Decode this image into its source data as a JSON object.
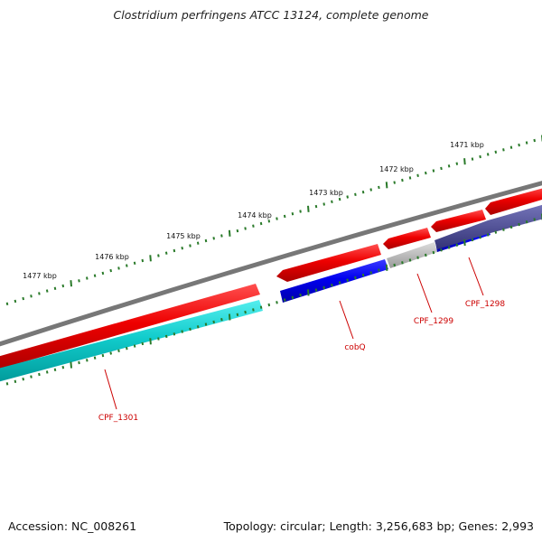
{
  "title": "Clostridium perfringens ATCC 13124, complete genome",
  "footer": {
    "accession": "Accession: NC_008261",
    "summary": "Topology: circular; Length: 3,256,683 bp; Genes: 2,993"
  },
  "scale_labels": [
    "1471 kbp",
    "1472 kbp",
    "1473 kbp",
    "1474 kbp",
    "1475 kbp",
    "1476 kbp",
    "1477 kbp"
  ],
  "gene_labels": [
    "CPF_1298",
    "CPF_1299",
    "cobQ",
    "CPF_1301"
  ],
  "colors": {
    "backbone": "#777777",
    "forward_cds": "#ee1111",
    "reverse_cds": "#0000dd",
    "gray_feature": "#bbbbbb",
    "navy_feature": "#555599",
    "teal_feature": "#22cccc",
    "tick": "#2a7a2a",
    "gene_label": "#cc0000"
  }
}
